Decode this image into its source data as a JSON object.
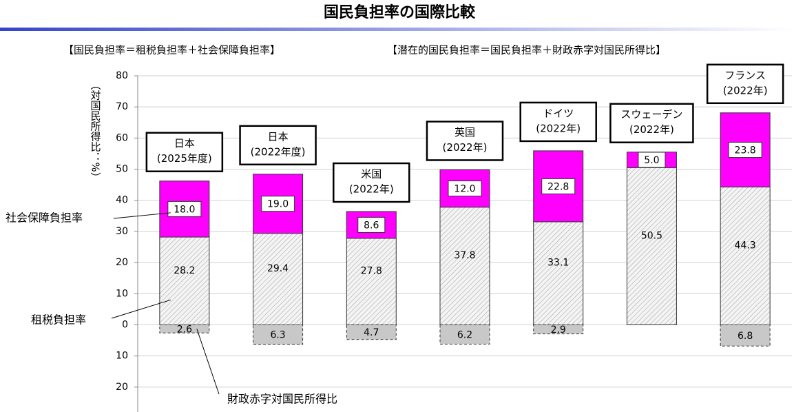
{
  "chart_data": {
    "type": "stacked-bar",
    "title": "国民負担率の国際比較",
    "headers": [
      "【国民負担率＝租税負担率＋社会保障負担率】",
      "【潜在的国民負担率＝国民負担率＋財政赤字対国民所得比】"
    ],
    "y_label": "（対国民所得比：%）",
    "categories": [
      [
        "日本",
        "(2025年度)"
      ],
      [
        "日本",
        "(2022年度)"
      ],
      [
        "米国",
        "(2022年)"
      ],
      [
        "英国",
        "(2022年)"
      ],
      [
        "ドイツ",
        "(2022年)"
      ],
      [
        "スウェーデン",
        "(2022年)"
      ],
      [
        "フランス",
        "(2022年)"
      ]
    ],
    "series": [
      {
        "name": "租税負担率",
        "color": "#d9d9d9",
        "values": [
          28.2,
          29.4,
          27.8,
          37.8,
          33.1,
          50.5,
          44.3
        ]
      },
      {
        "name": "社会保障負担率",
        "color": "#ff00ff",
        "values": [
          18.0,
          19.0,
          8.6,
          12.0,
          22.8,
          5.0,
          23.8
        ],
        "value_labels": [
          "18.0",
          "19.0",
          "8.6",
          "12.0",
          "22.8",
          "5.0",
          "23.8"
        ]
      },
      {
        "name": "財政赤字対国民所得比",
        "color": "#c8c8c8",
        "values": [
          -2.6,
          -6.3,
          -4.7,
          -6.2,
          -2.9,
          null,
          -6.8
        ],
        "value_labels": [
          "2.6",
          "6.3",
          "4.7",
          "6.2",
          "2.9",
          null,
          "6.8"
        ]
      }
    ],
    "ylim": [
      -28,
      80
    ],
    "yticks": [
      {
        "value": -20,
        "label": "20"
      },
      {
        "value": -10,
        "label": "10"
      },
      0,
      10,
      20,
      30,
      40,
      50,
      60,
      70,
      80
    ],
    "grid": true
  }
}
